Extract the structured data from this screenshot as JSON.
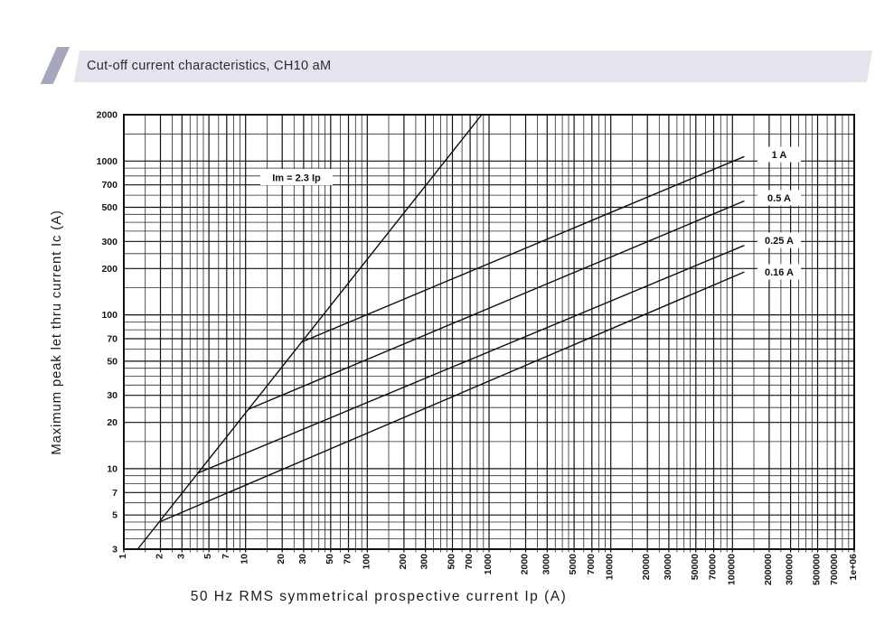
{
  "header": {
    "title": "Cut-off current characteristics, CH10 aM"
  },
  "chart_data": {
    "type": "line",
    "x_axis": {
      "label": "50 Hz RMS symmetrical prospective current Ip (A)",
      "scale": "log",
      "min": 1,
      "max": 1000000,
      "tick_labels": [
        "1",
        "2",
        "3",
        "5",
        "7",
        "10",
        "20",
        "30",
        "50",
        "70",
        "100",
        "200",
        "300",
        "500",
        "700",
        "1000",
        "2000",
        "3000",
        "5000",
        "7000",
        "10000",
        "20000",
        "30000",
        "50000",
        "70000",
        "100000",
        "200000",
        "300000",
        "500000",
        "700000",
        "1e+06"
      ]
    },
    "y_axis": {
      "label": "Maximum peak let thru current Ic (A)",
      "scale": "log",
      "min": 3,
      "max": 2000,
      "tick_labels": [
        "3",
        "5",
        "7",
        "10",
        "20",
        "30",
        "50",
        "70",
        "100",
        "200",
        "300",
        "500",
        "700",
        "1000",
        "2000"
      ]
    },
    "series": [
      {
        "name": "im-line",
        "label": "Im = 2.3 Ip",
        "points": [
          [
            1.3,
            3
          ],
          [
            870,
            2000
          ]
        ]
      },
      {
        "name": "fuse-1A",
        "label": "1 A",
        "points": [
          [
            29,
            66.7
          ],
          [
            125000,
            1070
          ]
        ]
      },
      {
        "name": "fuse-0.5A",
        "label": "0.5 A",
        "points": [
          [
            10.6,
            24.4
          ],
          [
            125000,
            550
          ]
        ]
      },
      {
        "name": "fuse-0.25A",
        "label": "0.25 A",
        "points": [
          [
            4.1,
            9.4
          ],
          [
            125000,
            283
          ]
        ]
      },
      {
        "name": "fuse-0.16A",
        "label": "0.16 A",
        "points": [
          [
            1.95,
            4.5
          ],
          [
            125000,
            190
          ]
        ]
      }
    ]
  }
}
